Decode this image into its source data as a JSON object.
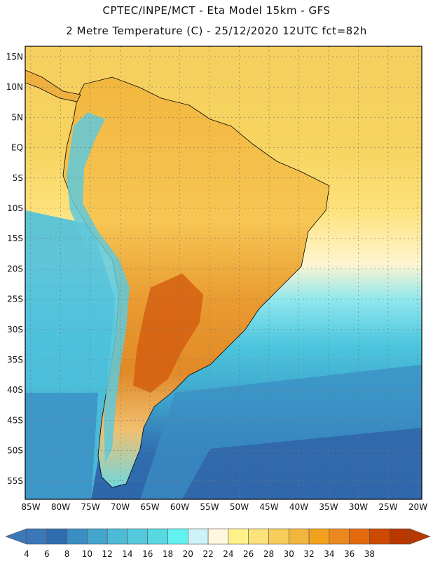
{
  "header": {
    "title_line1": "CPTEC/INPE/MCT  -   Eta Model 15km  -  GFS",
    "title_line2": "2 Metre Temperature (C) - 25/12/2020 12UTC fct=82h"
  },
  "map": {
    "lat_labels": [
      "15N",
      "10N",
      "5N",
      "EQ",
      "5S",
      "10S",
      "15S",
      "20S",
      "25S",
      "30S",
      "35S",
      "40S",
      "45S",
      "50S",
      "55S"
    ],
    "lon_labels": [
      "85W",
      "80W",
      "75W",
      "70W",
      "65W",
      "60W",
      "55W",
      "50W",
      "45W",
      "40W",
      "35W",
      "30W",
      "25W",
      "20W"
    ]
  },
  "colorbar": {
    "ticks": [
      "4",
      "6",
      "8",
      "10",
      "12",
      "14",
      "16",
      "18",
      "20",
      "22",
      "24",
      "26",
      "28",
      "30",
      "32",
      "34",
      "36",
      "38"
    ],
    "colors": [
      "#3a78b8",
      "#2f6db0",
      "#3b8ec4",
      "#44a6cd",
      "#4dbad6",
      "#55c9dc",
      "#58d8e2",
      "#63f0f0",
      "#cdf2f7",
      "#fff8de",
      "#fff28a",
      "#fbe27a",
      "#f6cc5a",
      "#f2b63e",
      "#f1a11c",
      "#ec8820",
      "#e46a0e",
      "#cd4a00",
      "#b83800"
    ]
  }
}
